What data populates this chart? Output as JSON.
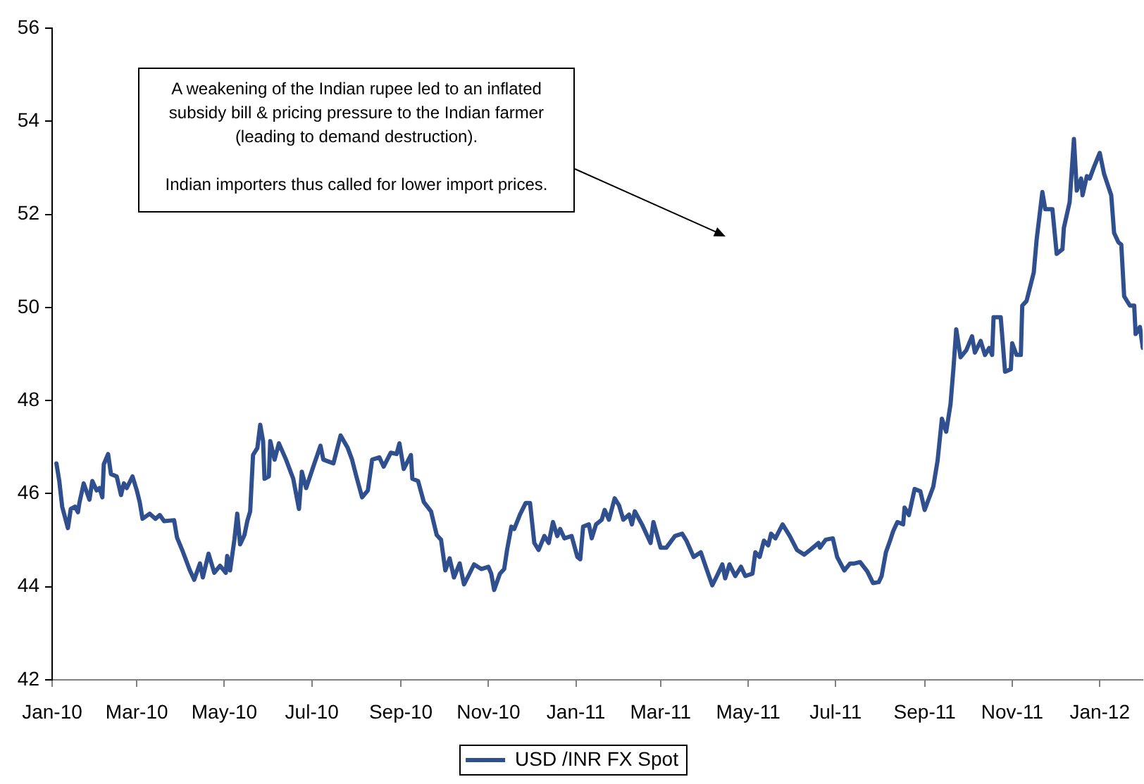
{
  "chart_data": {
    "type": "line",
    "annotations": [
      "A weakening of the Indian rupee led to an inflated subsidy bill & pricing pressure to the Indian farmer (leading to demand destruction).",
      "Indian importers thus called for lower import prices."
    ],
    "x": [
      "2010-01-04",
      "2010-01-06",
      "2010-01-08",
      "2010-01-12",
      "2010-01-14",
      "2010-01-17",
      "2010-01-19",
      "2010-01-20",
      "2010-01-23",
      "2010-01-27",
      "2010-01-29",
      "2010-02-01",
      "2010-02-03",
      "2010-02-05",
      "2010-02-06",
      "2010-02-09",
      "2010-02-11",
      "2010-02-15",
      "2010-02-18",
      "2010-02-20",
      "2010-02-22",
      "2010-02-26",
      "2010-03-01",
      "2010-03-03",
      "2010-03-05",
      "2010-03-10",
      "2010-03-14",
      "2010-03-17",
      "2010-03-20",
      "2010-03-27",
      "2010-03-29",
      "2010-04-02",
      "2010-04-07",
      "2010-04-10",
      "2010-04-14",
      "2010-04-16",
      "2010-04-20",
      "2010-04-24",
      "2010-04-28",
      "2010-05-02",
      "2010-05-03",
      "2010-05-05",
      "2010-05-08",
      "2010-05-10",
      "2010-05-12",
      "2010-05-15",
      "2010-05-17",
      "2010-05-19",
      "2010-05-21",
      "2010-05-24",
      "2010-05-26",
      "2010-05-28",
      "2010-05-29",
      "2010-06-01",
      "2010-06-02",
      "2010-06-05",
      "2010-06-08",
      "2010-06-13",
      "2010-06-18",
      "2010-06-22",
      "2010-06-24",
      "2010-06-27",
      "2010-07-02",
      "2010-07-07",
      "2010-07-09",
      "2010-07-16",
      "2010-07-21",
      "2010-07-26",
      "2010-07-29",
      "2010-08-01",
      "2010-08-05",
      "2010-08-09",
      "2010-08-12",
      "2010-08-17",
      "2010-08-20",
      "2010-08-25",
      "2010-08-29",
      "2010-08-31",
      "2010-09-03",
      "2010-09-08",
      "2010-09-09",
      "2010-09-13",
      "2010-09-17",
      "2010-09-22",
      "2010-09-26",
      "2010-09-29",
      "2010-10-02",
      "2010-10-05",
      "2010-10-08",
      "2010-10-12",
      "2010-10-15",
      "2010-10-18",
      "2010-10-22",
      "2010-10-27",
      "2010-11-01",
      "2010-11-03",
      "2010-11-05",
      "2010-11-09",
      "2010-11-12",
      "2010-11-14",
      "2010-11-17",
      "2010-11-19",
      "2010-11-23",
      "2010-11-27",
      "2010-11-30",
      "2010-12-03",
      "2010-12-06",
      "2010-12-10",
      "2010-12-13",
      "2010-12-16",
      "2010-12-19",
      "2010-12-21",
      "2010-12-24",
      "2010-12-29",
      "2011-01-02",
      "2011-01-04",
      "2011-01-06",
      "2011-01-10",
      "2011-01-12",
      "2011-01-15",
      "2011-01-19",
      "2011-01-21",
      "2011-01-24",
      "2011-01-28",
      "2011-01-31",
      "2011-02-03",
      "2011-02-07",
      "2011-02-09",
      "2011-02-11",
      "2011-02-16",
      "2011-02-22",
      "2011-02-24",
      "2011-03-01",
      "2011-03-05",
      "2011-03-11",
      "2011-03-16",
      "2011-03-19",
      "2011-03-24",
      "2011-03-29",
      "2011-04-02",
      "2011-04-06",
      "2011-04-10",
      "2011-04-13",
      "2011-04-15",
      "2011-04-18",
      "2011-04-22",
      "2011-04-26",
      "2011-04-29",
      "2011-05-04",
      "2011-05-06",
      "2011-05-09",
      "2011-05-12",
      "2011-05-15",
      "2011-05-17",
      "2011-05-20",
      "2011-05-25",
      "2011-05-30",
      "2011-06-04",
      "2011-06-09",
      "2011-06-14",
      "2011-06-19",
      "2011-06-20",
      "2011-06-24",
      "2011-06-29",
      "2011-07-02",
      "2011-07-07",
      "2011-07-11",
      "2011-07-14",
      "2011-07-18",
      "2011-07-23",
      "2011-07-27",
      "2011-07-31",
      "2011-08-02",
      "2011-08-05",
      "2011-08-08",
      "2011-08-10",
      "2011-08-13",
      "2011-08-17",
      "2011-08-18",
      "2011-08-21",
      "2011-08-25",
      "2011-08-29",
      "2011-09-01",
      "2011-09-07",
      "2011-09-10",
      "2011-09-13",
      "2011-09-16",
      "2011-09-19",
      "2011-09-21",
      "2011-09-23",
      "2011-09-26",
      "2011-09-30",
      "2011-10-04",
      "2011-10-06",
      "2011-10-10",
      "2011-10-13",
      "2011-10-16",
      "2011-10-18",
      "2011-10-19",
      "2011-10-24",
      "2011-10-27",
      "2011-10-31",
      "2011-11-01",
      "2011-11-04",
      "2011-11-07",
      "2011-11-08",
      "2011-11-11",
      "2011-11-16",
      "2011-11-18",
      "2011-11-22",
      "2011-11-24",
      "2011-11-29",
      "2011-12-02",
      "2011-12-06",
      "2011-12-07",
      "2011-12-11",
      "2011-12-14",
      "2011-12-16",
      "2011-12-19",
      "2011-12-20",
      "2011-12-23",
      "2011-12-25",
      "2011-12-28",
      "2012-01-01",
      "2012-01-04",
      "2012-01-09",
      "2012-01-11",
      "2012-01-14",
      "2012-01-16",
      "2012-01-18",
      "2012-01-22",
      "2012-01-25",
      "2012-01-26",
      "2012-01-29",
      "2012-01-31"
    ],
    "series": [
      {
        "name": "USD /INR FX Spot",
        "color": "#2f4f8f",
        "values": [
          46.65,
          46.27,
          45.72,
          45.26,
          45.67,
          45.72,
          45.6,
          45.8,
          46.22,
          45.87,
          46.27,
          46.07,
          46.12,
          45.92,
          46.63,
          46.85,
          46.42,
          46.37,
          45.97,
          46.22,
          46.12,
          46.37,
          46.07,
          45.82,
          45.46,
          45.57,
          45.46,
          45.54,
          45.41,
          45.43,
          45.06,
          44.76,
          44.35,
          44.15,
          44.5,
          44.2,
          44.71,
          44.3,
          44.45,
          44.3,
          44.66,
          44.35,
          45.01,
          45.57,
          44.91,
          45.11,
          45.41,
          45.62,
          46.83,
          46.98,
          47.48,
          47.13,
          46.32,
          46.37,
          47.13,
          46.73,
          47.08,
          46.73,
          46.32,
          45.67,
          46.47,
          46.12,
          46.58,
          47.03,
          46.73,
          46.65,
          47.25,
          46.98,
          46.73,
          46.37,
          45.92,
          46.07,
          46.73,
          46.78,
          46.58,
          46.88,
          46.85,
          47.08,
          46.53,
          46.83,
          46.32,
          46.27,
          45.82,
          45.62,
          45.11,
          45.01,
          44.35,
          44.61,
          44.2,
          44.5,
          44.05,
          44.23,
          44.48,
          44.38,
          44.43,
          44.28,
          43.93,
          44.28,
          44.38,
          44.79,
          45.29,
          45.24,
          45.55,
          45.8,
          45.8,
          44.94,
          44.79,
          45.09,
          44.94,
          45.39,
          45.09,
          45.24,
          45.04,
          45.09,
          44.64,
          44.59,
          45.29,
          45.34,
          45.04,
          45.34,
          45.44,
          45.65,
          45.44,
          45.9,
          45.75,
          45.44,
          45.55,
          45.34,
          45.62,
          45.34,
          44.94,
          45.39,
          44.84,
          44.84,
          45.09,
          45.14,
          44.99,
          44.64,
          44.74,
          44.38,
          44.03,
          44.28,
          44.48,
          44.18,
          44.48,
          44.23,
          44.43,
          44.23,
          44.28,
          44.74,
          44.64,
          44.99,
          44.89,
          45.14,
          45.04,
          45.34,
          45.09,
          44.79,
          44.69,
          44.81,
          44.94,
          44.84,
          45.01,
          45.04,
          44.64,
          44.35,
          44.5,
          44.5,
          44.53,
          44.33,
          44.08,
          44.1,
          44.23,
          44.74,
          45.0,
          45.19,
          45.39,
          45.34,
          45.7,
          45.54,
          46.1,
          46.05,
          45.65,
          46.15,
          46.71,
          47.61,
          47.33,
          47.92,
          48.67,
          49.53,
          48.93,
          49.08,
          49.38,
          49.03,
          49.28,
          48.98,
          49.13,
          48.98,
          49.79,
          49.79,
          48.62,
          48.67,
          49.23,
          48.98,
          48.98,
          50.04,
          50.14,
          50.75,
          51.45,
          52.48,
          52.11,
          52.11,
          51.15,
          51.25,
          51.71,
          52.26,
          53.62,
          52.51,
          52.77,
          52.41,
          52.82,
          52.77,
          53.02,
          53.32,
          52.87,
          52.41,
          51.6,
          51.4,
          51.35,
          50.24,
          50.04,
          50.04,
          49.43,
          49.58,
          49.13
        ]
      }
    ],
    "xlim": [
      "2010-01-01",
      "2012-01-31"
    ],
    "xticks": [
      {
        "value": "2010-01",
        "label": "Jan-10"
      },
      {
        "value": "2010-03",
        "label": "Mar-10"
      },
      {
        "value": "2010-05",
        "label": "May-10"
      },
      {
        "value": "2010-07",
        "label": "Jul-10"
      },
      {
        "value": "2010-09",
        "label": "Sep-10"
      },
      {
        "value": "2010-11",
        "label": "Nov-10"
      },
      {
        "value": "2011-01",
        "label": "Jan-11"
      },
      {
        "value": "2011-03",
        "label": "Mar-11"
      },
      {
        "value": "2011-05",
        "label": "May-11"
      },
      {
        "value": "2011-07",
        "label": "Jul-11"
      },
      {
        "value": "2011-09",
        "label": "Sep-11"
      },
      {
        "value": "2011-11",
        "label": "Nov-11"
      },
      {
        "value": "2012-01",
        "label": "Jan-12"
      }
    ],
    "ylim": [
      42,
      56
    ],
    "yticks": [
      42,
      44,
      46,
      48,
      50,
      52,
      54,
      56
    ],
    "grid": false,
    "legend": "bottom",
    "marker": "none",
    "line_style": "solid"
  }
}
